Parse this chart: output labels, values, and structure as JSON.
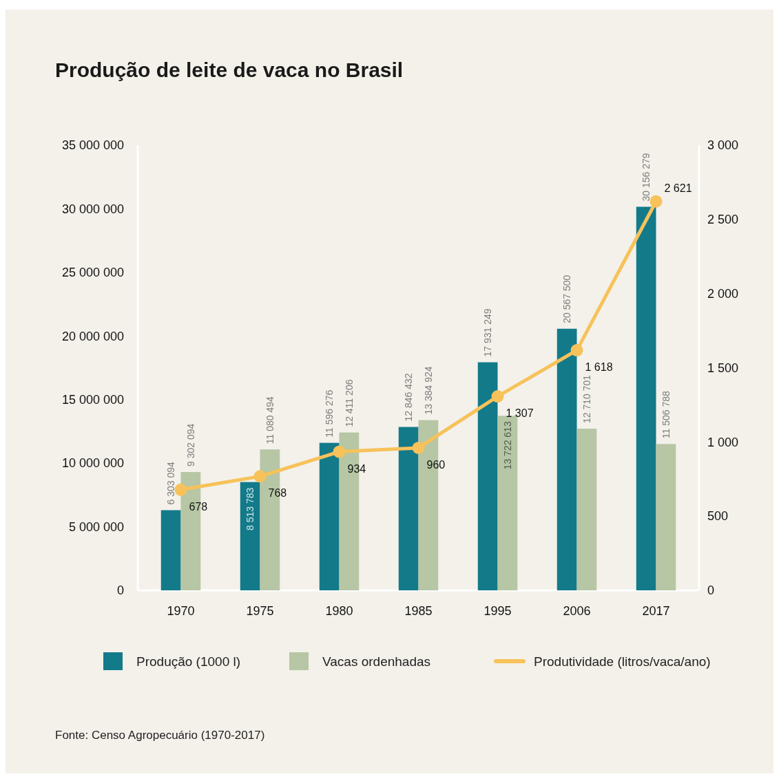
{
  "chart_data": {
    "type": "bar",
    "title": "Produção de leite de vaca no Brasil",
    "categories": [
      "1970",
      "1975",
      "1980",
      "1985",
      "1995",
      "2006",
      "2017"
    ],
    "series": [
      {
        "name": "Produção (1000 l)",
        "color": "#137a8a",
        "values": [
          6303094,
          8513783,
          11596276,
          12846432,
          17931249,
          20567500,
          30156279
        ],
        "value_labels": [
          "6 303 094",
          "8 513 783",
          "11 596 276",
          "12 846 432",
          "17 931 249",
          "20 567 500",
          "30 156 279"
        ]
      },
      {
        "name": "Vacas ordenhadas",
        "color": "#b7c6a4",
        "values": [
          9302094,
          11080494,
          12411206,
          13384924,
          13722613,
          12710701,
          11506788
        ],
        "value_labels": [
          "9 302 094",
          "11 080 494",
          "12 411 206",
          "13 384 924",
          "13 722 613",
          "12 710 701",
          "11 506 788"
        ]
      },
      {
        "name": "Produtividade (litros/vaca/ano)",
        "type": "line",
        "axis": "y2",
        "color": "#f7c25a",
        "marker": "circle",
        "values": [
          678,
          768,
          934,
          960,
          1307,
          1618,
          2621
        ],
        "value_labels": [
          "678",
          "768",
          "934",
          "960",
          "1 307",
          "1 618",
          "2 621"
        ]
      }
    ],
    "ylim": [
      0,
      35000000
    ],
    "yticks": [
      {
        "value": 0,
        "label": "0"
      },
      {
        "value": 5000000,
        "label": "5 000 000"
      },
      {
        "value": 10000000,
        "label": "10 000 000"
      },
      {
        "value": 15000000,
        "label": "15 000 000"
      },
      {
        "value": 20000000,
        "label": "20 000 000"
      },
      {
        "value": 25000000,
        "label": "25 000 000"
      },
      {
        "value": 30000000,
        "label": "30 000 000"
      },
      {
        "value": 35000000,
        "label": "35 000 000"
      }
    ],
    "y2lim": [
      0,
      3000
    ],
    "y2ticks": [
      {
        "value": 0,
        "label": "0"
      },
      {
        "value": 500,
        "label": "500"
      },
      {
        "value": 1000,
        "label": "1 000"
      },
      {
        "value": 1500,
        "label": "1 500"
      },
      {
        "value": 2000,
        "label": "2 000"
      },
      {
        "value": 2500,
        "label": "2 500"
      },
      {
        "value": 3000,
        "label": "3 000"
      }
    ],
    "grid": false,
    "legend": "bottom",
    "annotations": [
      "Fonte: Censo Agropecuário (1970-2017)"
    ]
  }
}
